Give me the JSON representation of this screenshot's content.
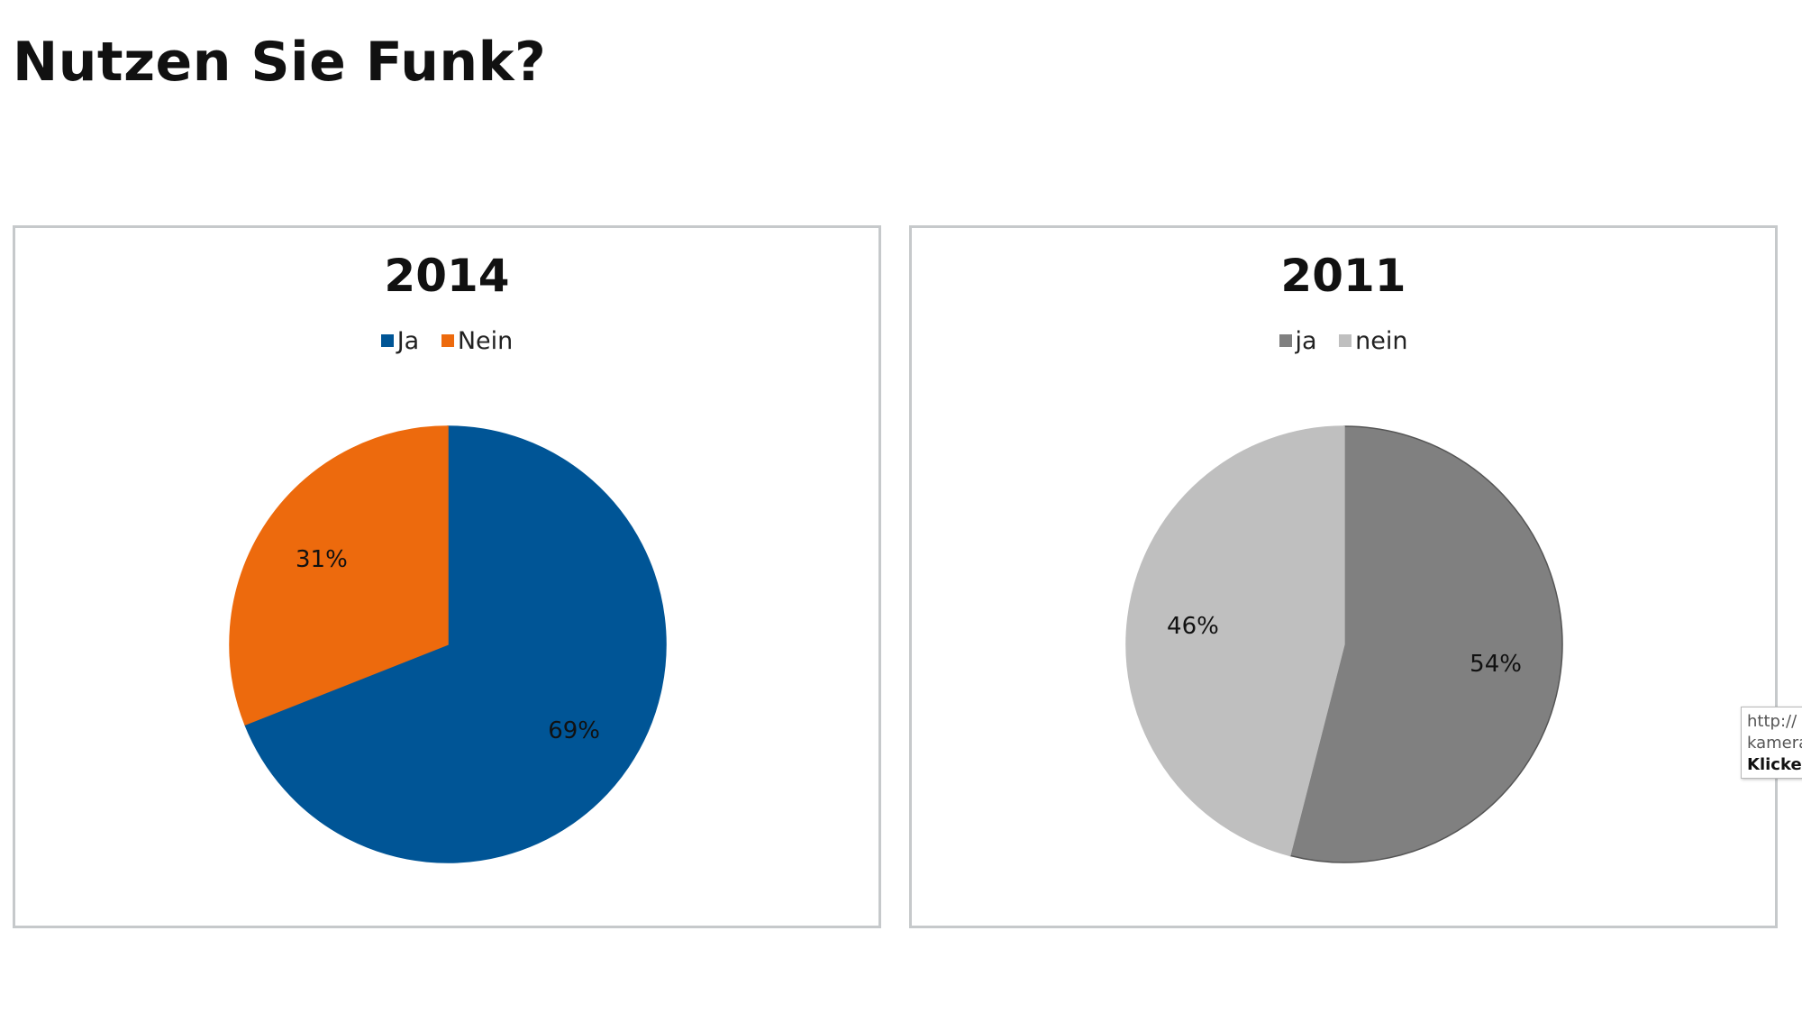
{
  "page": {
    "title": "Nutzen Sie Funk?"
  },
  "chart_data": [
    {
      "type": "pie",
      "title": "2014",
      "legend_position": "top",
      "categories": [
        "Ja",
        "Nein"
      ],
      "values": [
        69,
        31
      ],
      "labels": [
        "69%",
        "31%"
      ],
      "colors": [
        "#005596",
        "#ED6A0D"
      ]
    },
    {
      "type": "pie",
      "title": "2011",
      "legend_position": "top",
      "categories": [
        "ja",
        "nein"
      ],
      "values": [
        54,
        46
      ],
      "labels": [
        "54%",
        "46%"
      ],
      "colors": [
        "#808080",
        "#BFBFBF"
      ]
    }
  ],
  "tooltip": {
    "line1": "http://",
    "line2": "kamera",
    "line3": "Klicken"
  }
}
